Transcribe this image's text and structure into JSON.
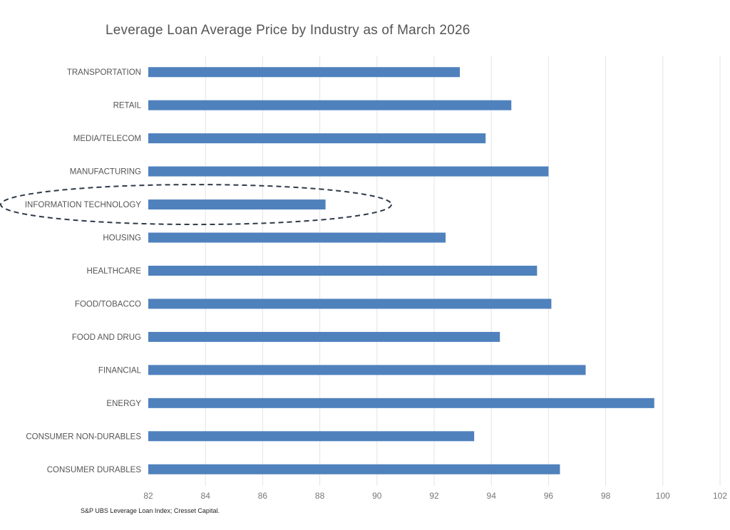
{
  "chart_data": {
    "type": "bar",
    "orientation": "horizontal",
    "title": "Leverage  Loan Average Price by Industry as of March 2026",
    "xlabel": "",
    "ylabel": "",
    "xlim": [
      82,
      102
    ],
    "xticks": [
      82,
      84,
      86,
      88,
      90,
      92,
      94,
      96,
      98,
      100,
      102
    ],
    "grid": "vertical",
    "categories": [
      "TRANSPORTATION",
      "RETAIL",
      "MEDIA/TELECOM",
      "MANUFACTURING",
      "INFORMATION TECHNOLOGY",
      "HOUSING",
      "HEALTHCARE",
      "FOOD/TOBACCO",
      "FOOD AND DRUG",
      "FINANCIAL",
      "ENERGY",
      "CONSUMER NON-DURABLES",
      "CONSUMER DURABLES"
    ],
    "values": [
      92.9,
      94.7,
      93.8,
      96.0,
      88.2,
      92.4,
      95.6,
      96.1,
      94.3,
      97.3,
      99.7,
      93.4,
      96.4
    ],
    "bar_color": "#4f81bd",
    "highlighted_category": "INFORMATION TECHNOLOGY",
    "highlight_style": "dashed ellipse"
  },
  "source": "S&P UBS Leverage Loan Index; Cresset Capital."
}
